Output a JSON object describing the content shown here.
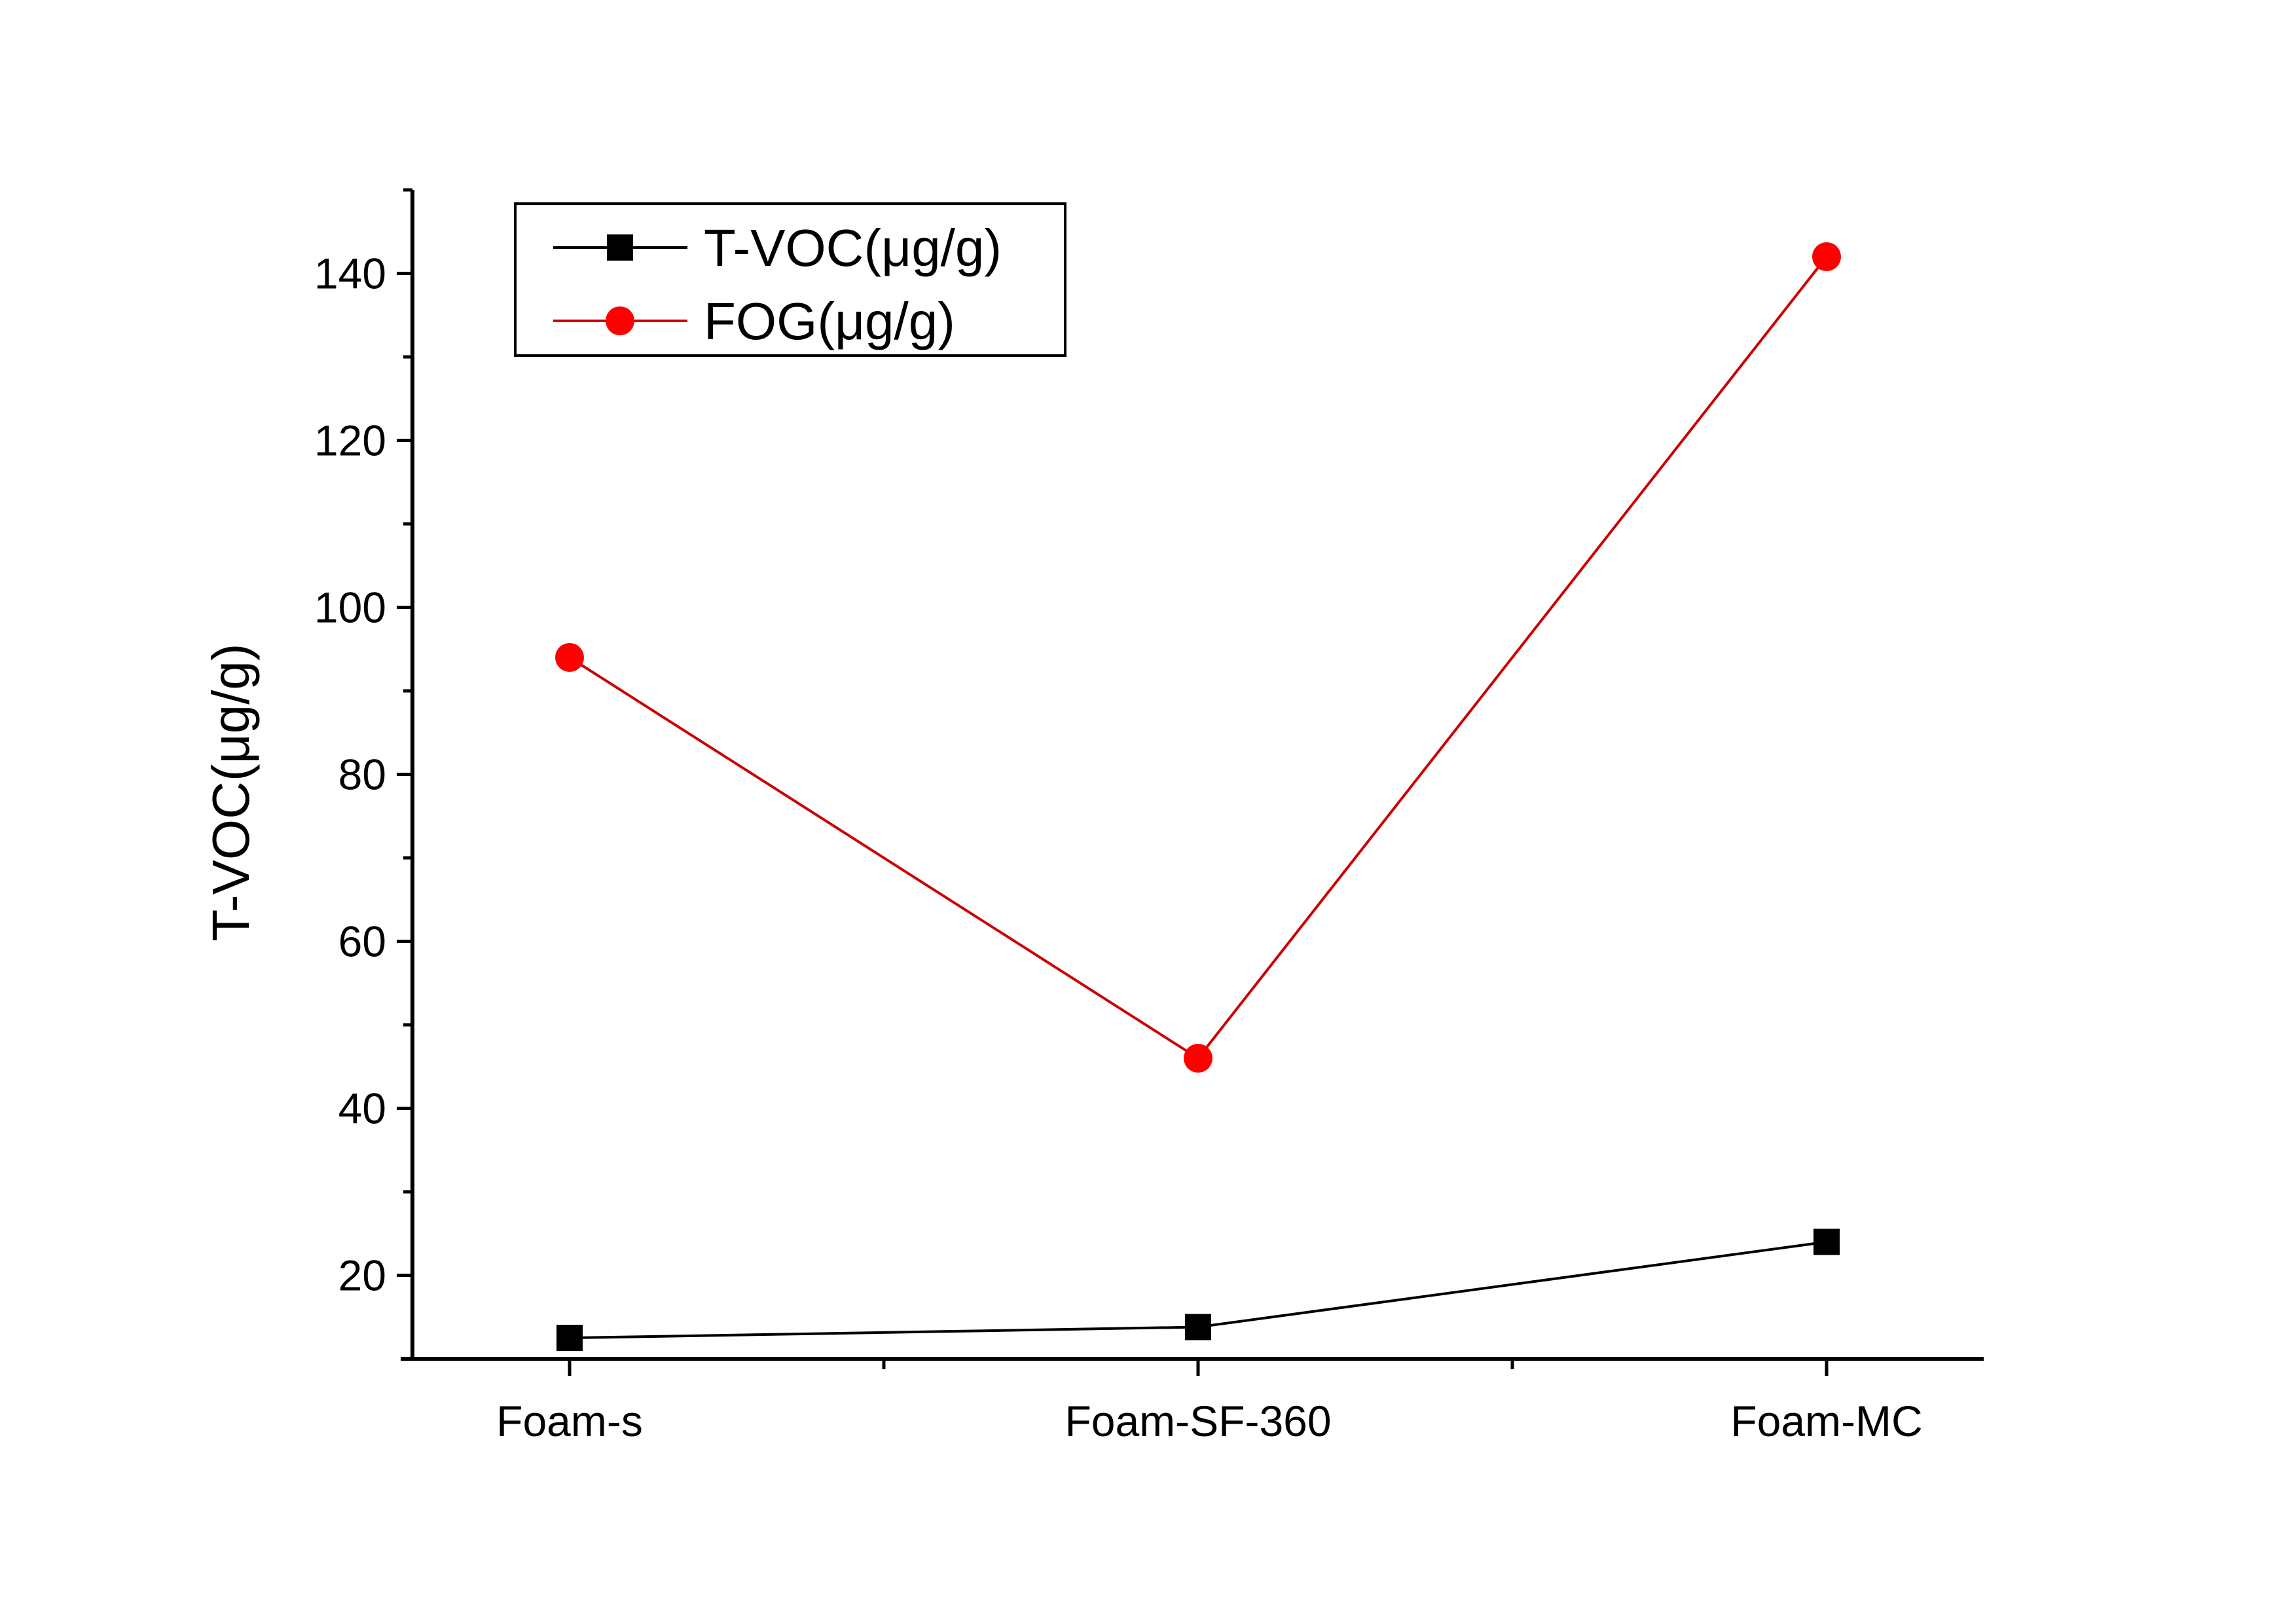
{
  "chart_data": {
    "type": "line",
    "categories": [
      "Foam-s",
      "Foam-SF-360",
      "Foam-MC"
    ],
    "series": [
      {
        "name": "T-VOC(μg/g)",
        "values": [
          12.5,
          13.8,
          24.0
        ],
        "color": "#000000",
        "marker": "square"
      },
      {
        "name": "FOG(μg/g)",
        "values": [
          94.0,
          46.0,
          142.0
        ],
        "color": "#ff0000",
        "marker": "circle",
        "line_color": "#cc0000"
      }
    ],
    "ylabel": "T-VOC(μg/g)",
    "xlabel": "",
    "ylim": [
      10,
      150
    ],
    "yticks": [
      20,
      40,
      60,
      80,
      100,
      120,
      140
    ],
    "grid": false,
    "legend_position": "top-left"
  }
}
